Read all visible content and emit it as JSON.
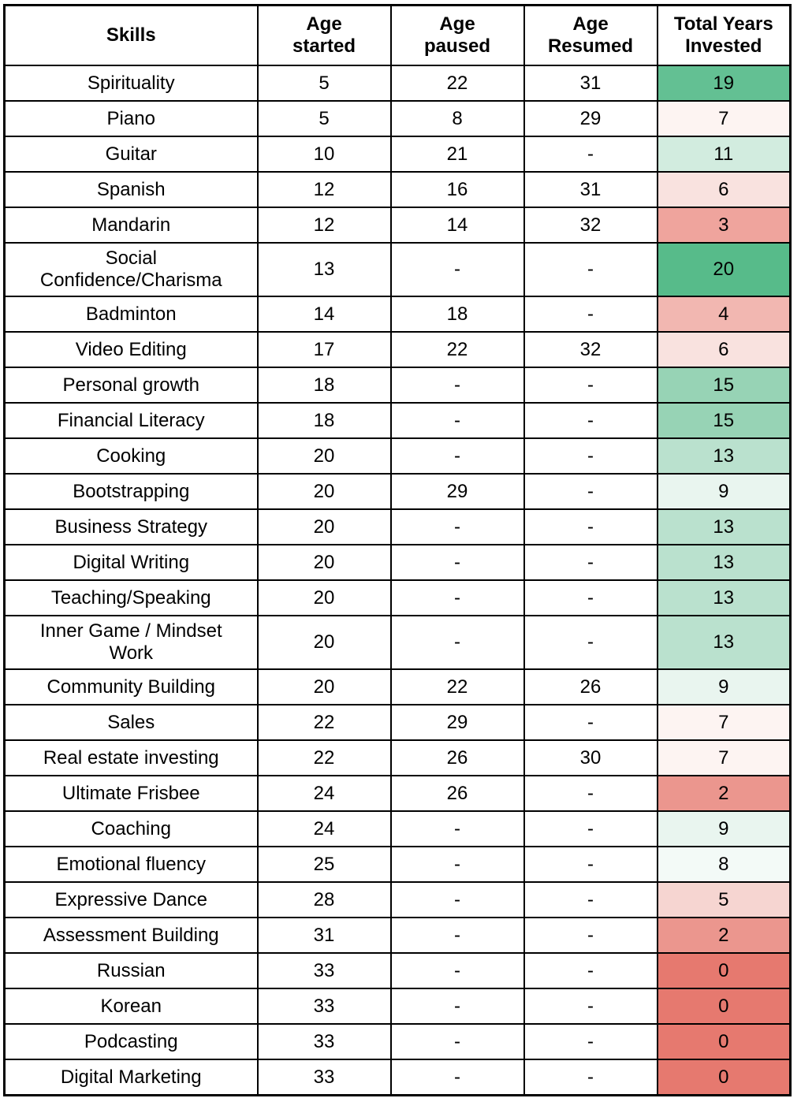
{
  "chart_data": {
    "type": "table",
    "columns": [
      "Skills",
      "Age\nstarted",
      "Age\npaused",
      "Age\nResumed",
      "Total Years\nInvested"
    ],
    "rows": [
      {
        "skill": "Spirituality",
        "age_started": "5",
        "age_paused": "22",
        "age_resumed": "31",
        "total_years": "19",
        "total_color": "#63C093"
      },
      {
        "skill": "Piano",
        "age_started": "5",
        "age_paused": "8",
        "age_resumed": "29",
        "total_years": "7",
        "total_color": "#FDF4F2"
      },
      {
        "skill": "Guitar",
        "age_started": "10",
        "age_paused": "21",
        "age_resumed": "-",
        "total_years": "11",
        "total_color": "#D2ECDF"
      },
      {
        "skill": "Spanish",
        "age_started": "12",
        "age_paused": "16",
        "age_resumed": "31",
        "total_years": "6",
        "total_color": "#F9E2DF"
      },
      {
        "skill": "Mandarin",
        "age_started": "12",
        "age_paused": "14",
        "age_resumed": "32",
        "total_years": "3",
        "total_color": "#EFA49D"
      },
      {
        "skill": "Social\nConfidence/Charisma",
        "age_started": "13",
        "age_paused": "-",
        "age_resumed": "-",
        "total_years": "20",
        "total_color": "#57BB8A"
      },
      {
        "skill": "Badminton",
        "age_started": "14",
        "age_paused": "18",
        "age_resumed": "-",
        "total_years": "4",
        "total_color": "#F2B7B1"
      },
      {
        "skill": "Video Editing",
        "age_started": "17",
        "age_paused": "22",
        "age_resumed": "32",
        "total_years": "6",
        "total_color": "#F9E2DF"
      },
      {
        "skill": "Personal growth",
        "age_started": "18",
        "age_paused": "-",
        "age_resumed": "-",
        "total_years": "15",
        "total_color": "#97D3B5"
      },
      {
        "skill": "Financial Literacy",
        "age_started": "18",
        "age_paused": "-",
        "age_resumed": "-",
        "total_years": "15",
        "total_color": "#97D3B5"
      },
      {
        "skill": "Cooking",
        "age_started": "20",
        "age_paused": "-",
        "age_resumed": "-",
        "total_years": "13",
        "total_color": "#BAE1CE"
      },
      {
        "skill": "Bootstrapping",
        "age_started": "20",
        "age_paused": "29",
        "age_resumed": "-",
        "total_years": "9",
        "total_color": "#E9F5EF"
      },
      {
        "skill": "Business Strategy",
        "age_started": "20",
        "age_paused": "-",
        "age_resumed": "-",
        "total_years": "13",
        "total_color": "#BAE1CE"
      },
      {
        "skill": "Digital Writing",
        "age_started": "20",
        "age_paused": "-",
        "age_resumed": "-",
        "total_years": "13",
        "total_color": "#BAE1CE"
      },
      {
        "skill": "Teaching/Speaking",
        "age_started": "20",
        "age_paused": "-",
        "age_resumed": "-",
        "total_years": "13",
        "total_color": "#BAE1CE"
      },
      {
        "skill": "Inner Game / Mindset\nWork",
        "age_started": "20",
        "age_paused": "-",
        "age_resumed": "-",
        "total_years": "13",
        "total_color": "#BAE1CE"
      },
      {
        "skill": "Community Building",
        "age_started": "20",
        "age_paused": "22",
        "age_resumed": "26",
        "total_years": "9",
        "total_color": "#E9F5EF"
      },
      {
        "skill": "Sales",
        "age_started": "22",
        "age_paused": "29",
        "age_resumed": "-",
        "total_years": "7",
        "total_color": "#FDF4F2"
      },
      {
        "skill": "Real estate investing",
        "age_started": "22",
        "age_paused": "26",
        "age_resumed": "30",
        "total_years": "7",
        "total_color": "#FDF4F2"
      },
      {
        "skill": "Ultimate Frisbee",
        "age_started": "24",
        "age_paused": "26",
        "age_resumed": "-",
        "total_years": "2",
        "total_color": "#EB968E"
      },
      {
        "skill": "Coaching",
        "age_started": "24",
        "age_paused": "-",
        "age_resumed": "-",
        "total_years": "9",
        "total_color": "#E9F5EF"
      },
      {
        "skill": "Emotional fluency",
        "age_started": "25",
        "age_paused": "-",
        "age_resumed": "-",
        "total_years": "8",
        "total_color": "#F3FAF7"
      },
      {
        "skill": "Expressive Dance",
        "age_started": "28",
        "age_paused": "-",
        "age_resumed": "-",
        "total_years": "5",
        "total_color": "#F6D5D1"
      },
      {
        "skill": "Assessment Building",
        "age_started": "31",
        "age_paused": "-",
        "age_resumed": "-",
        "total_years": "2",
        "total_color": "#EB968E"
      },
      {
        "skill": "Russian",
        "age_started": "33",
        "age_paused": "-",
        "age_resumed": "-",
        "total_years": "0",
        "total_color": "#E6796F"
      },
      {
        "skill": "Korean",
        "age_started": "33",
        "age_paused": "-",
        "age_resumed": "-",
        "total_years": "0",
        "total_color": "#E6796F"
      },
      {
        "skill": "Podcasting",
        "age_started": "33",
        "age_paused": "-",
        "age_resumed": "-",
        "total_years": "0",
        "total_color": "#E6796F"
      },
      {
        "skill": "Digital Marketing",
        "age_started": "33",
        "age_paused": "-",
        "age_resumed": "-",
        "total_years": "0",
        "total_color": "#E6796F"
      }
    ],
    "colorscale": {
      "applies_to": "Total Years Invested",
      "min_value": 0,
      "mid_value": 7.5,
      "max_value": 20,
      "min_color": "#E67C73",
      "mid_color": "#FFFFFF",
      "max_color": "#57BB8A"
    },
    "layout": {
      "border_color": "#000000",
      "text_color": "#000000",
      "background": "#FFFFFF",
      "grid": "on",
      "header_bold": true
    }
  }
}
